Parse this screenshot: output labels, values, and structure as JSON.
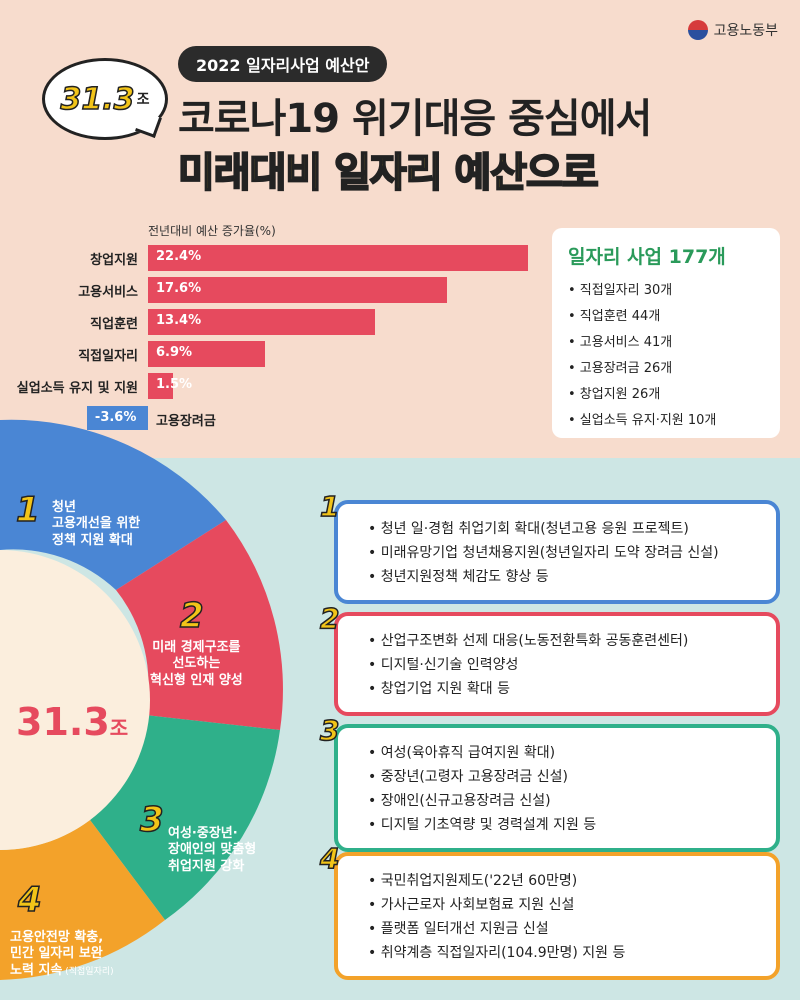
{
  "ministry": "고용노동부",
  "header": {
    "pill": "2022 일자리사업 예산안",
    "bubble_num": "31.3",
    "bubble_unit": "조",
    "line1": "코로나19 위기대응 중심에서",
    "line2": "미래대비 일자리 예산으로"
  },
  "chart_data": {
    "type": "bar",
    "title": "전년대비 예산 증가율(%)",
    "categories": [
      "창업지원",
      "고용서비스",
      "직업훈련",
      "직접일자리",
      "실업소득 유지 및 지원",
      "고용장려금"
    ],
    "values": [
      22.4,
      17.6,
      13.4,
      6.9,
      1.5,
      -3.6
    ],
    "value_labels": [
      "22.4%",
      "17.6%",
      "13.4%",
      "6.9%",
      "1.5%",
      "-3.6%"
    ],
    "colors": {
      "positive": "#e64a5e",
      "negative": "#4a86d4"
    }
  },
  "info": {
    "title": "일자리 사업 177개",
    "items": [
      "직접일자리 30개",
      "직업훈련 44개",
      "고용서비스 41개",
      "고용장려금 26개",
      "창업지원 26개",
      "실업소득 유지·지원 10개"
    ]
  },
  "pie": {
    "center": "31.3",
    "center_unit": "조",
    "segments": [
      {
        "num": "1",
        "text": "청년\n고용개선을 위한\n정책 지원 확대",
        "color": "#4a86d4"
      },
      {
        "num": "2",
        "text": "미래 경제구조를\n선도하는\n혁신형 인재 양성",
        "color": "#e64a5e"
      },
      {
        "num": "3",
        "text": "여성·중장년·\n장애인의 맞춤형\n취업지원 강화",
        "color": "#2fb08a"
      },
      {
        "num": "4",
        "text": "고용안전망 확충,\n민간 일자리 보완\n노력 지속",
        "note": "(직접일자리)",
        "color": "#f3a22a"
      }
    ]
  },
  "cards": [
    {
      "num": "1",
      "color": "#4a86d4",
      "items": [
        "청년 일·경험 취업기회 확대(청년고용 응원 프로젝트)",
        "미래유망기업 청년채용지원(청년일자리 도약 장려금 신설)",
        "청년지원정책 체감도 향상 등"
      ]
    },
    {
      "num": "2",
      "color": "#e64a5e",
      "items": [
        "산업구조변화 선제 대응(노동전환특화 공동훈련센터)",
        "디지털·신기술 인력양성",
        "창업기업 지원 확대 등"
      ]
    },
    {
      "num": "3",
      "color": "#2fb08a",
      "items": [
        "여성(육아휴직 급여지원 확대)",
        "중장년(고령자 고용장려금 신설)",
        "장애인(신규고용장려금 신설)",
        "디지털 기초역량 및 경력설계 지원 등"
      ]
    },
    {
      "num": "4",
      "color": "#f3a22a",
      "items": [
        "국민취업지원제도('22년 60만명)",
        "가사근로자 사회보험료 지원 신설",
        "플랫폼 일터개선 지원금 신설",
        "취약계층 직접일자리(104.9만명) 지원 등"
      ]
    }
  ]
}
